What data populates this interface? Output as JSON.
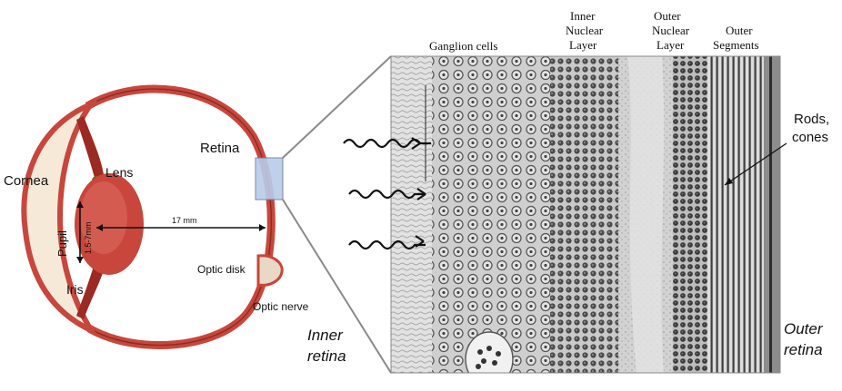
{
  "eye": {
    "labels": {
      "cornea": "Cornea",
      "lens": "Lens",
      "pupil": "Pupil",
      "pupil_size": "1.5-7mm",
      "iris": "Iris",
      "retina": "Retina",
      "axial_length": "17 mm",
      "optic_disk": "Optic disk",
      "optic_nerve": "Optic nerve"
    }
  },
  "micrograph": {
    "layers": {
      "ganglion": "Ganglion cells",
      "inner_nuclear": [
        "Inner",
        "Nuclear",
        "Layer"
      ],
      "outer_nuclear": [
        "Outer",
        "Nuclear",
        "Layer"
      ],
      "outer_segments": [
        "Outer",
        "Segments"
      ]
    },
    "rods_cones": [
      "Rods,",
      "cones"
    ],
    "inner_retina": [
      "Inner",
      "retina"
    ],
    "outer_retina": [
      "Outer",
      "retina"
    ]
  },
  "colors": {
    "tissue_red": "#c8463c",
    "tissue_dark": "#9b2a22",
    "cornea_cream": "#f6e9d8",
    "highlight_box": "#b9cbe8",
    "micrograph_bg": "#d7d7d7"
  }
}
